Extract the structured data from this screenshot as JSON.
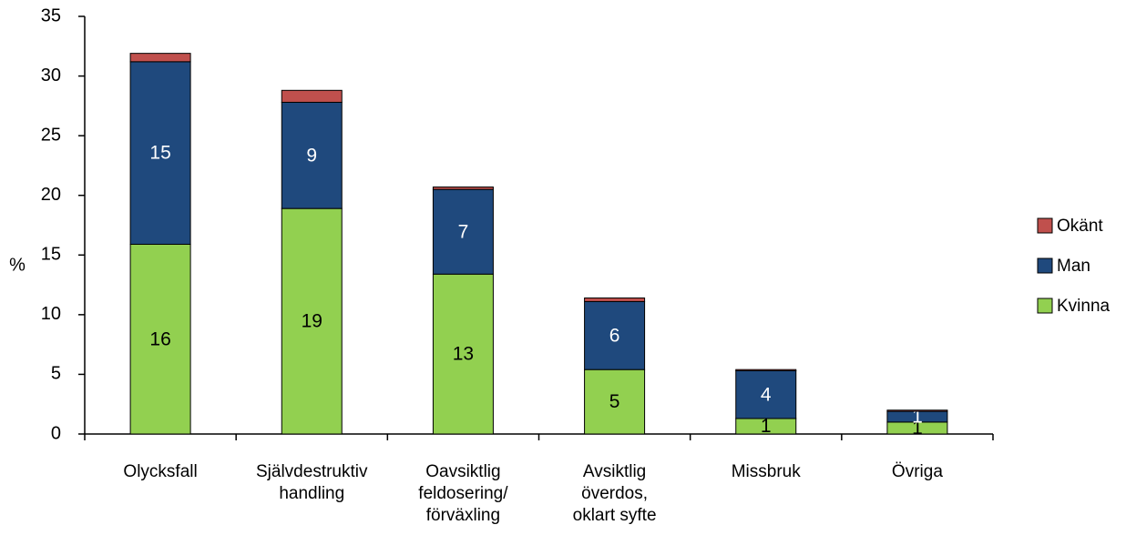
{
  "chart_data": {
    "type": "bar",
    "stacked": true,
    "ylabel": "%",
    "ylim": [
      0,
      35
    ],
    "yticks": [
      0,
      5,
      10,
      15,
      20,
      25,
      30,
      35
    ],
    "categories": [
      [
        "Olycksfall"
      ],
      [
        "Självdestruktiv",
        "handling"
      ],
      [
        "Oavsiktlig",
        "feldosering/",
        "förväxling"
      ],
      [
        "Avsiktlig",
        "överdos,",
        "oklart syfte"
      ],
      [
        "Missbruk"
      ],
      [
        "Övriga"
      ]
    ],
    "series": [
      {
        "name": "Kvinna",
        "color": "#92d050",
        "values": [
          15.9,
          18.9,
          13.4,
          5.4,
          1.3,
          1.0
        ],
        "labels": [
          "16",
          "19",
          "13",
          "5",
          "1",
          "1"
        ]
      },
      {
        "name": "Man",
        "color": "#1f497d",
        "values": [
          15.3,
          8.9,
          7.1,
          5.7,
          4.0,
          0.9
        ],
        "labels": [
          "15",
          "9",
          "7",
          "6",
          "4",
          "1"
        ]
      },
      {
        "name": "Okänt",
        "color": "#c0504d",
        "values": [
          0.7,
          1.0,
          0.2,
          0.3,
          0.1,
          0.1
        ],
        "labels": [
          "",
          "",
          "",
          "",
          "",
          ""
        ]
      }
    ],
    "legend_order": [
      "Okänt",
      "Man",
      "Kvinna"
    ],
    "legend_position": "right",
    "grid": false
  }
}
